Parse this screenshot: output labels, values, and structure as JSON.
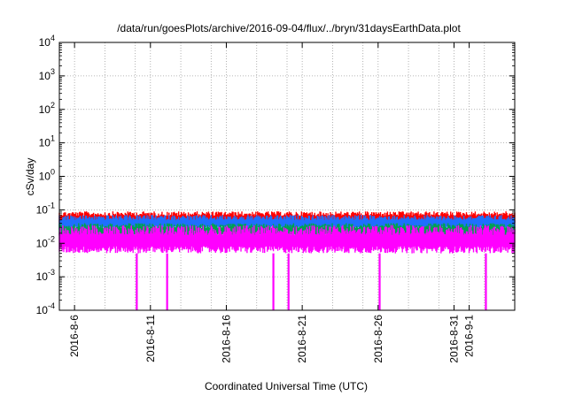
{
  "chart_data": {
    "type": "line",
    "title": "/data/run/goesPlots/archive/2016-09-04/flux/../bryn/31daysEarthData.plot",
    "xlabel": "Coordinated Universal Time (UTC)",
    "ylabel": "cSv/day",
    "y_scale": "log",
    "ylim": [
      0.0001,
      10000
    ],
    "y_ticks": [
      {
        "value": 0.0001,
        "base": "10",
        "exp": "-4"
      },
      {
        "value": 0.001,
        "base": "10",
        "exp": "-3"
      },
      {
        "value": 0.01,
        "base": "10",
        "exp": "-2"
      },
      {
        "value": 0.1,
        "base": "10",
        "exp": "-1"
      },
      {
        "value": 1,
        "base": "10",
        "exp": "0"
      },
      {
        "value": 10,
        "base": "10",
        "exp": "1"
      },
      {
        "value": 100,
        "base": "10",
        "exp": "2"
      },
      {
        "value": 1000,
        "base": "10",
        "exp": "3"
      },
      {
        "value": 10000,
        "base": "10",
        "exp": "4"
      }
    ],
    "xlim": [
      "2016-08-05",
      "2016-09-04"
    ],
    "x_ticks": [
      {
        "label": "2016-8-6",
        "date": "2016-08-06"
      },
      {
        "label": "2016-8-11",
        "date": "2016-08-11"
      },
      {
        "label": "2016-8-16",
        "date": "2016-08-16"
      },
      {
        "label": "2016-8-21",
        "date": "2016-08-21"
      },
      {
        "label": "2016-8-26",
        "date": "2016-08-26"
      },
      {
        "label": "2016-8-31",
        "date": "2016-08-31"
      },
      {
        "label": "2016-9-1",
        "date": "2016-09-01"
      }
    ],
    "x_minor_grid_dates": [
      "2016-08-08",
      "2016-08-10",
      "2016-08-13",
      "2016-08-15",
      "2016-08-18",
      "2016-08-20",
      "2016-08-23",
      "2016-08-25",
      "2016-08-28",
      "2016-08-30",
      "2016-09-02"
    ],
    "grid": true,
    "series": [
      {
        "color": "#ff0000",
        "typical_max": 0.09,
        "typical_min": 0.035
      },
      {
        "color": "#1e6fff",
        "typical_max": 0.07,
        "typical_min": 0.025
      },
      {
        "color": "#00a050",
        "typical_max": 0.04,
        "typical_min": 0.015
      },
      {
        "color": "#ff00ff",
        "typical_max": 0.035,
        "typical_min": 0.005,
        "dropouts": [
          "2016-08-10",
          "2016-08-12",
          "2016-08-19",
          "2016-08-20",
          "2016-08-26",
          "2016-09-02"
        ]
      }
    ]
  }
}
